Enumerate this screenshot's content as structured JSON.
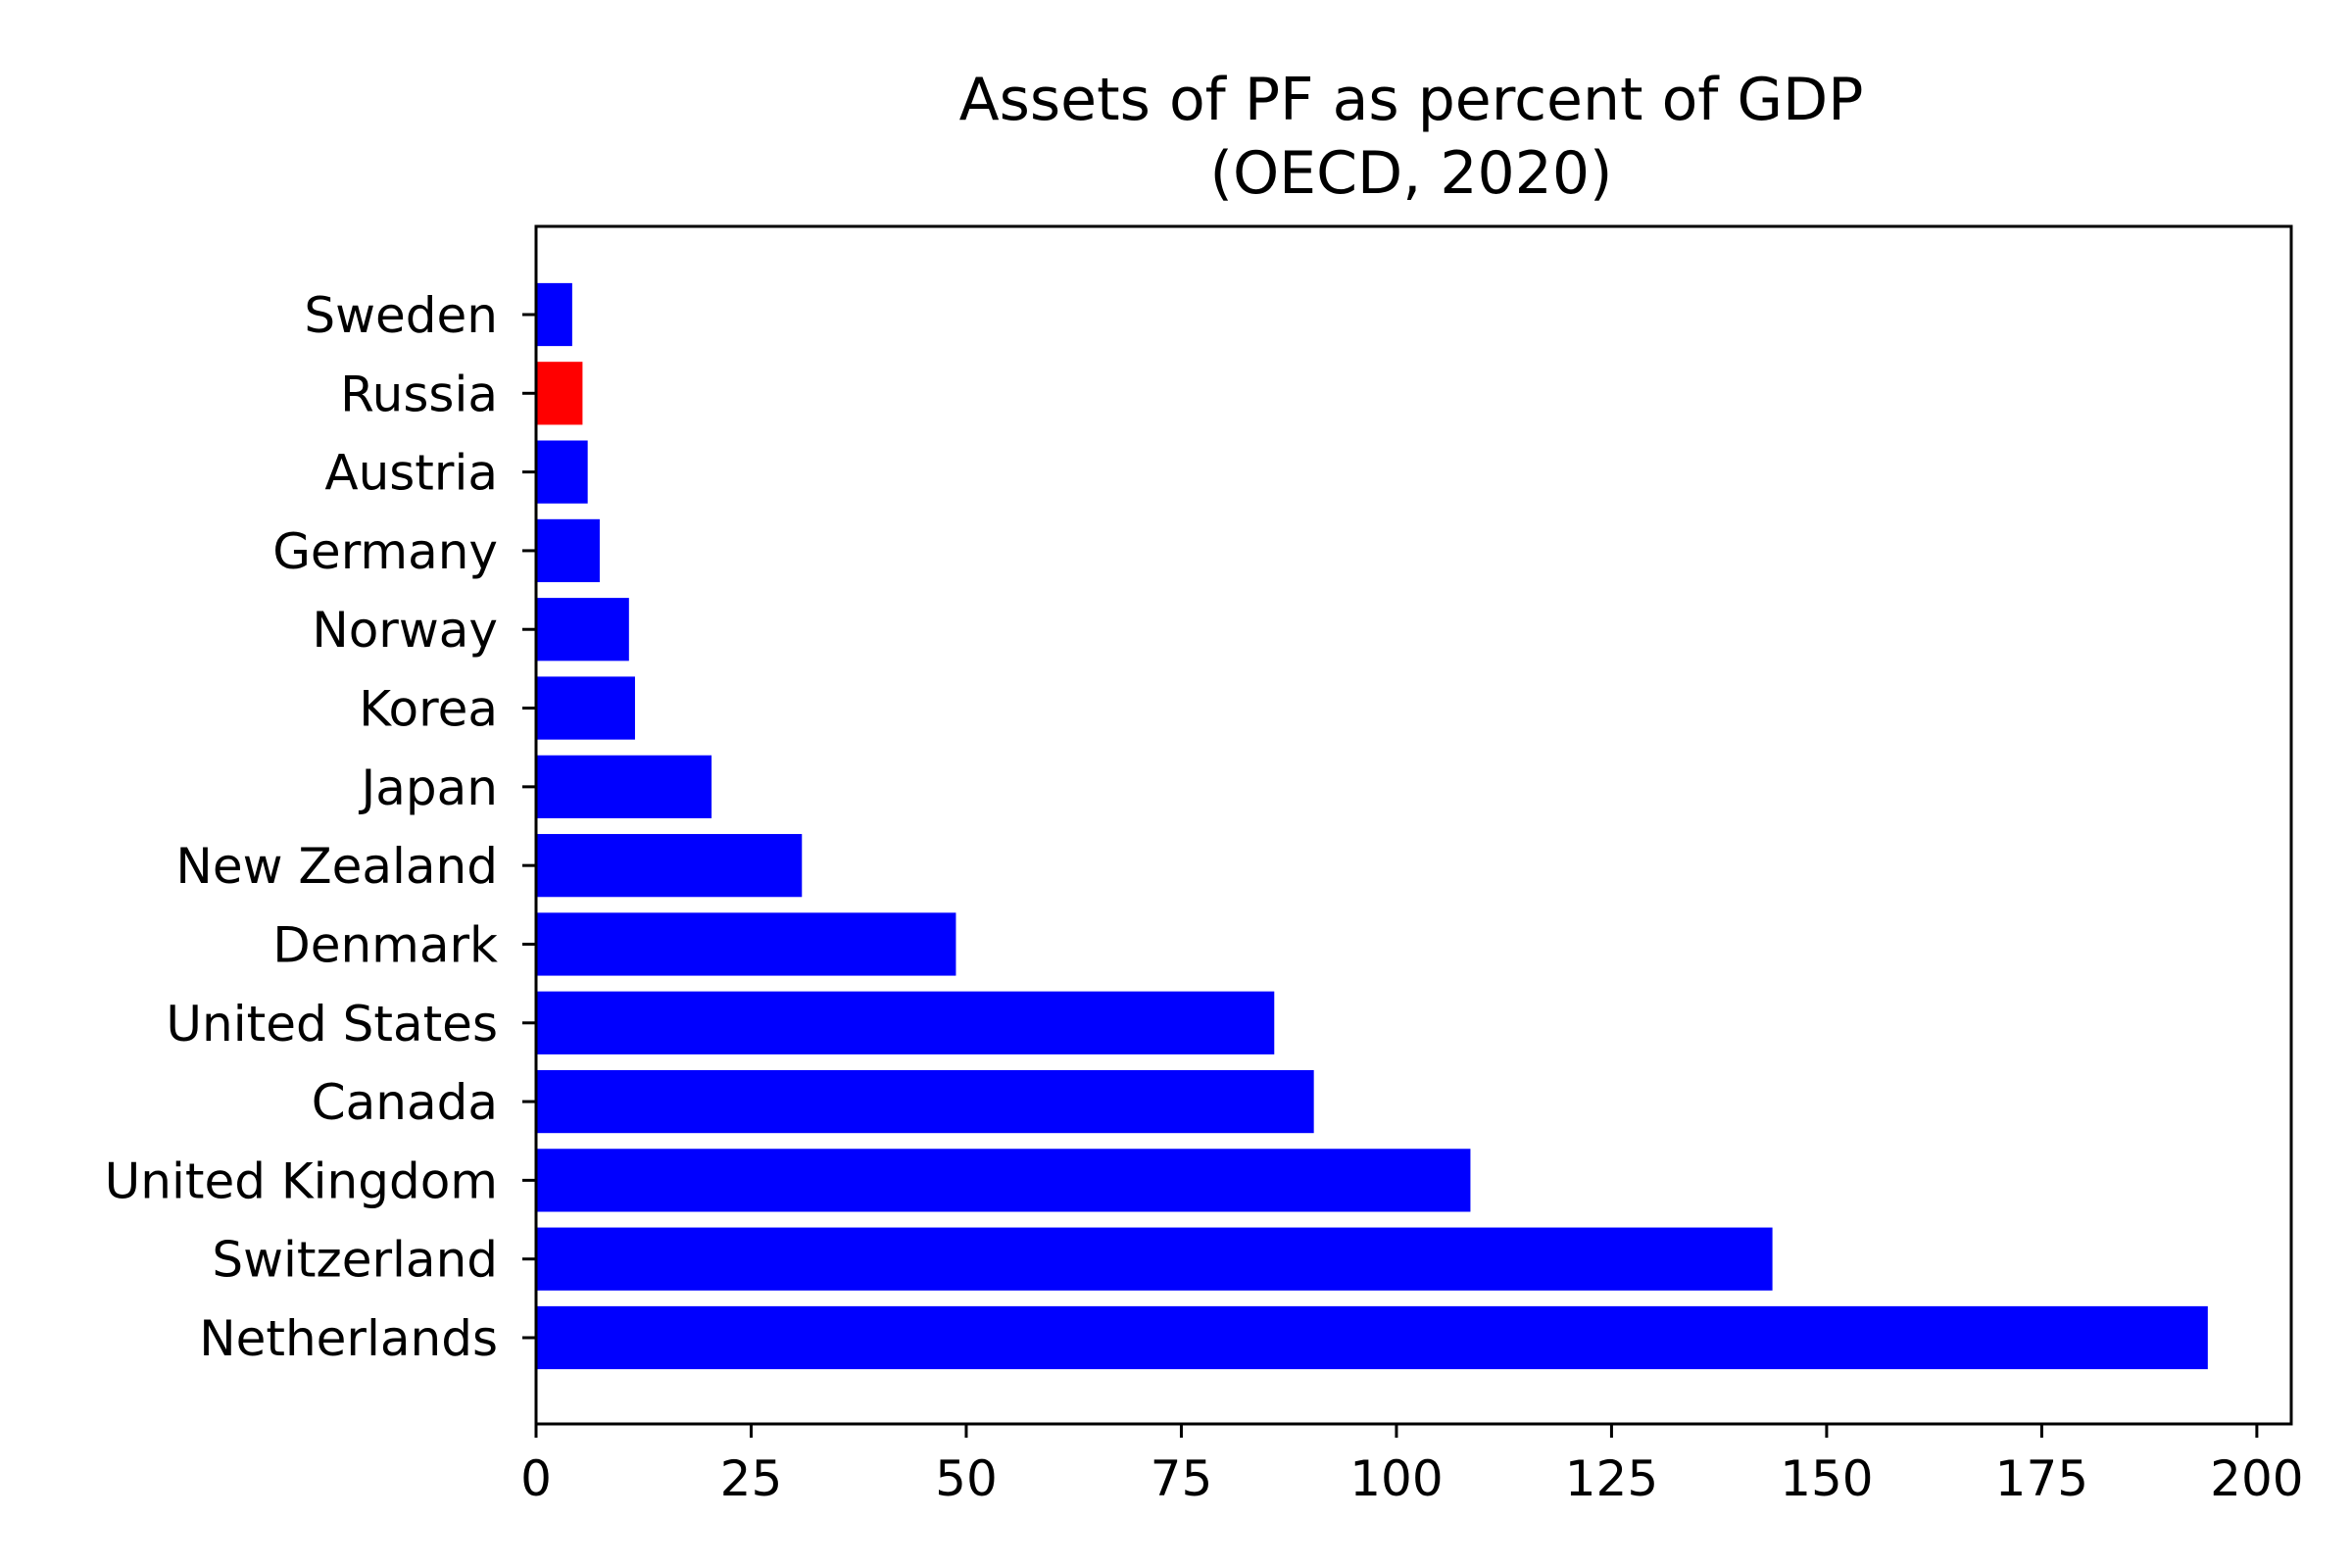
{
  "chart_data": {
    "type": "bar",
    "orientation": "horizontal",
    "title": "Assets of PF as percent of GDP",
    "subtitle": "(OECD, 2020)",
    "xlabel": "",
    "ylabel": "",
    "xlim": [
      0,
      204
    ],
    "xticks": [
      0,
      25,
      50,
      75,
      100,
      125,
      150,
      175,
      200
    ],
    "grid": false,
    "categories": [
      "Netherlands",
      "Switzerland",
      "United Kingdom",
      "Canada",
      "United States",
      "Denmark",
      "New Zealand",
      "Japan",
      "Korea",
      "Norway",
      "Germany",
      "Austria",
      "Russia",
      "Sweden"
    ],
    "values": [
      194.3,
      143.7,
      108.6,
      90.4,
      85.8,
      48.8,
      30.9,
      20.4,
      11.5,
      10.8,
      7.4,
      6.0,
      5.4,
      4.2
    ],
    "colors": [
      "#0000ff",
      "#0000ff",
      "#0000ff",
      "#0000ff",
      "#0000ff",
      "#0000ff",
      "#0000ff",
      "#0000ff",
      "#0000ff",
      "#0000ff",
      "#0000ff",
      "#0000ff",
      "#ff0000",
      "#0000ff"
    ]
  }
}
